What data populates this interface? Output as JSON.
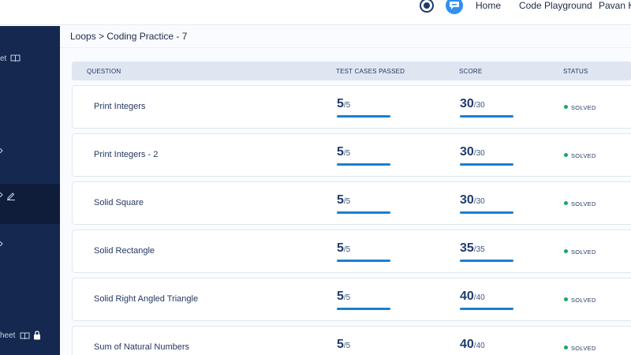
{
  "header": {
    "home": "Home",
    "code_playground": "Code Playground",
    "user": "Pavan K"
  },
  "sidebar": {
    "item1_text": "et",
    "item2_text": "heet"
  },
  "breadcrumb": "Loops > Coding Practice - 7",
  "table": {
    "columns": [
      "QUESTION",
      "TEST CASES PASSED",
      "SCORE",
      "STATUS"
    ],
    "rows": [
      {
        "question": "Print Integers",
        "passed": "5",
        "total": "/5",
        "score": "30",
        "max": "/30",
        "status": "SOLVED",
        "progress": 1.0
      },
      {
        "question": "Print Integers - 2",
        "passed": "5",
        "total": "/5",
        "score": "30",
        "max": "/30",
        "status": "SOLVED",
        "progress": 1.0
      },
      {
        "question": "Solid Square",
        "passed": "5",
        "total": "/5",
        "score": "30",
        "max": "/30",
        "status": "SOLVED",
        "progress": 1.0
      },
      {
        "question": "Solid Rectangle",
        "passed": "5",
        "total": "/5",
        "score": "35",
        "max": "/35",
        "status": "SOLVED",
        "progress": 1.0
      },
      {
        "question": "Solid Right Angled Triangle",
        "passed": "5",
        "total": "/5",
        "score": "40",
        "max": "/40",
        "status": "SOLVED",
        "progress": 1.0
      },
      {
        "question": "Sum of Natural Numbers",
        "passed": "5",
        "total": "/5",
        "score": "40",
        "max": "/40",
        "status": "SOLVED",
        "progress": 1.0
      }
    ]
  },
  "colors": {
    "sidebar_bg": "#152850",
    "accent_blue": "#1a7fd4",
    "solved_green": "#14a66d",
    "header_row_bg": "#dfe6f2"
  }
}
